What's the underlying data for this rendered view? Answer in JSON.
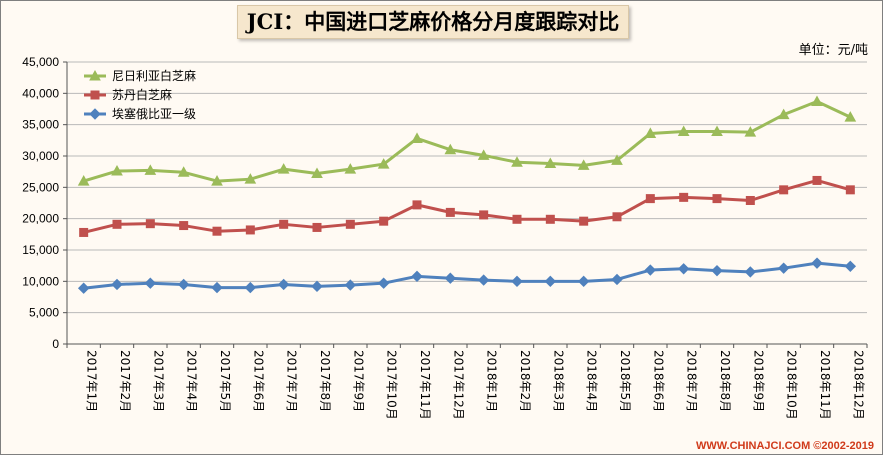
{
  "title": "JCI：中国进口芝麻价格分月度跟踪对比",
  "unit": "单位：元/吨",
  "footer": "WWW.CHINAJCI.COM ©2002-2019",
  "colors": {
    "series0": "#9bbb59",
    "series1": "#c0504d",
    "series2": "#4f81bd",
    "grid": "#b9b9b9"
  },
  "chart_data": {
    "type": "line",
    "title": "JCI：中国进口芝麻价格分月度跟踪对比",
    "xlabel": "",
    "ylabel": "",
    "ylim": [
      0,
      45000
    ],
    "yticks": [
      0,
      5000,
      10000,
      15000,
      20000,
      25000,
      30000,
      35000,
      40000,
      45000
    ],
    "ytick_labels": [
      "0",
      "5,000",
      "10,000",
      "15,000",
      "20,000",
      "25,000",
      "30,000",
      "35,000",
      "40,000",
      "45,000"
    ],
    "grid": true,
    "legend": "top-left",
    "categories": [
      "2017年1月",
      "2017年2月",
      "2017年3月",
      "2017年4月",
      "2017年5月",
      "2017年6月",
      "2017年7月",
      "2017年8月",
      "2017年9月",
      "2017年10月",
      "2017年11月",
      "2017年12月",
      "2018年1月",
      "2018年2月",
      "2018年3月",
      "2018年4月",
      "2018年5月",
      "2018年6月",
      "2018年7月",
      "2018年8月",
      "2018年9月",
      "2018年10月",
      "2018年11月",
      "2018年12月"
    ],
    "series": [
      {
        "name": "尼日利亚白芝麻",
        "marker": "triangle",
        "values": [
          26000,
          27600,
          27700,
          27400,
          26000,
          26300,
          27900,
          27200,
          27900,
          28700,
          32800,
          31000,
          30100,
          29000,
          28800,
          28500,
          29300,
          33600,
          33900,
          33900,
          33800,
          36600,
          38700,
          36200
        ]
      },
      {
        "name": "苏丹白芝麻",
        "marker": "square",
        "values": [
          17800,
          19100,
          19200,
          18900,
          18000,
          18200,
          19100,
          18600,
          19100,
          19600,
          22200,
          21000,
          20600,
          19900,
          19900,
          19600,
          20300,
          23200,
          23400,
          23200,
          22900,
          24600,
          26100,
          24600
        ]
      },
      {
        "name": "埃塞俄比亚一级",
        "marker": "diamond",
        "values": [
          8900,
          9500,
          9700,
          9500,
          9000,
          9000,
          9500,
          9200,
          9400,
          9700,
          10800,
          10500,
          10200,
          10000,
          10000,
          10000,
          10300,
          11800,
          12000,
          11700,
          11500,
          12100,
          12900,
          12400
        ]
      }
    ]
  }
}
